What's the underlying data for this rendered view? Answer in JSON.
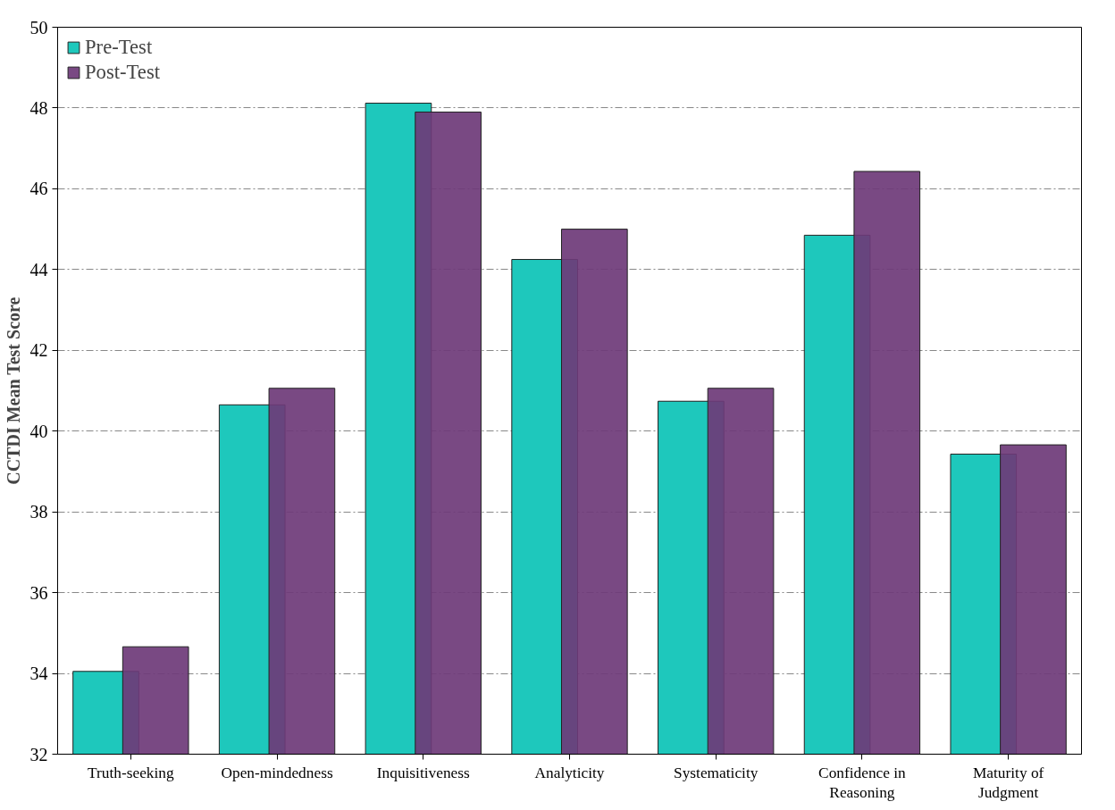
{
  "chart_data": {
    "type": "bar",
    "ylabel": "CCTDI Mean Test Score",
    "categories": [
      "Truth-seeking",
      "Open-mindedness",
      "Inquisitiveness",
      "Analyticity",
      "Systematicity",
      "Confidence in Reasoning",
      "Maturity of Judgment"
    ],
    "series": [
      {
        "name": "Pre-Test",
        "color": "#1ec8bc",
        "values": [
          34.05,
          40.65,
          48.12,
          44.25,
          40.74,
          44.85,
          39.43
        ]
      },
      {
        "name": "Post-Test",
        "color": "#6e3a78",
        "values": [
          34.66,
          41.06,
          47.9,
          45.0,
          41.06,
          46.43,
          39.66
        ]
      }
    ],
    "ylim": [
      32,
      50
    ],
    "yticks": [
      32,
      34,
      36,
      38,
      40,
      42,
      44,
      46,
      48,
      50
    ],
    "grid": "y",
    "legend": "top left"
  }
}
